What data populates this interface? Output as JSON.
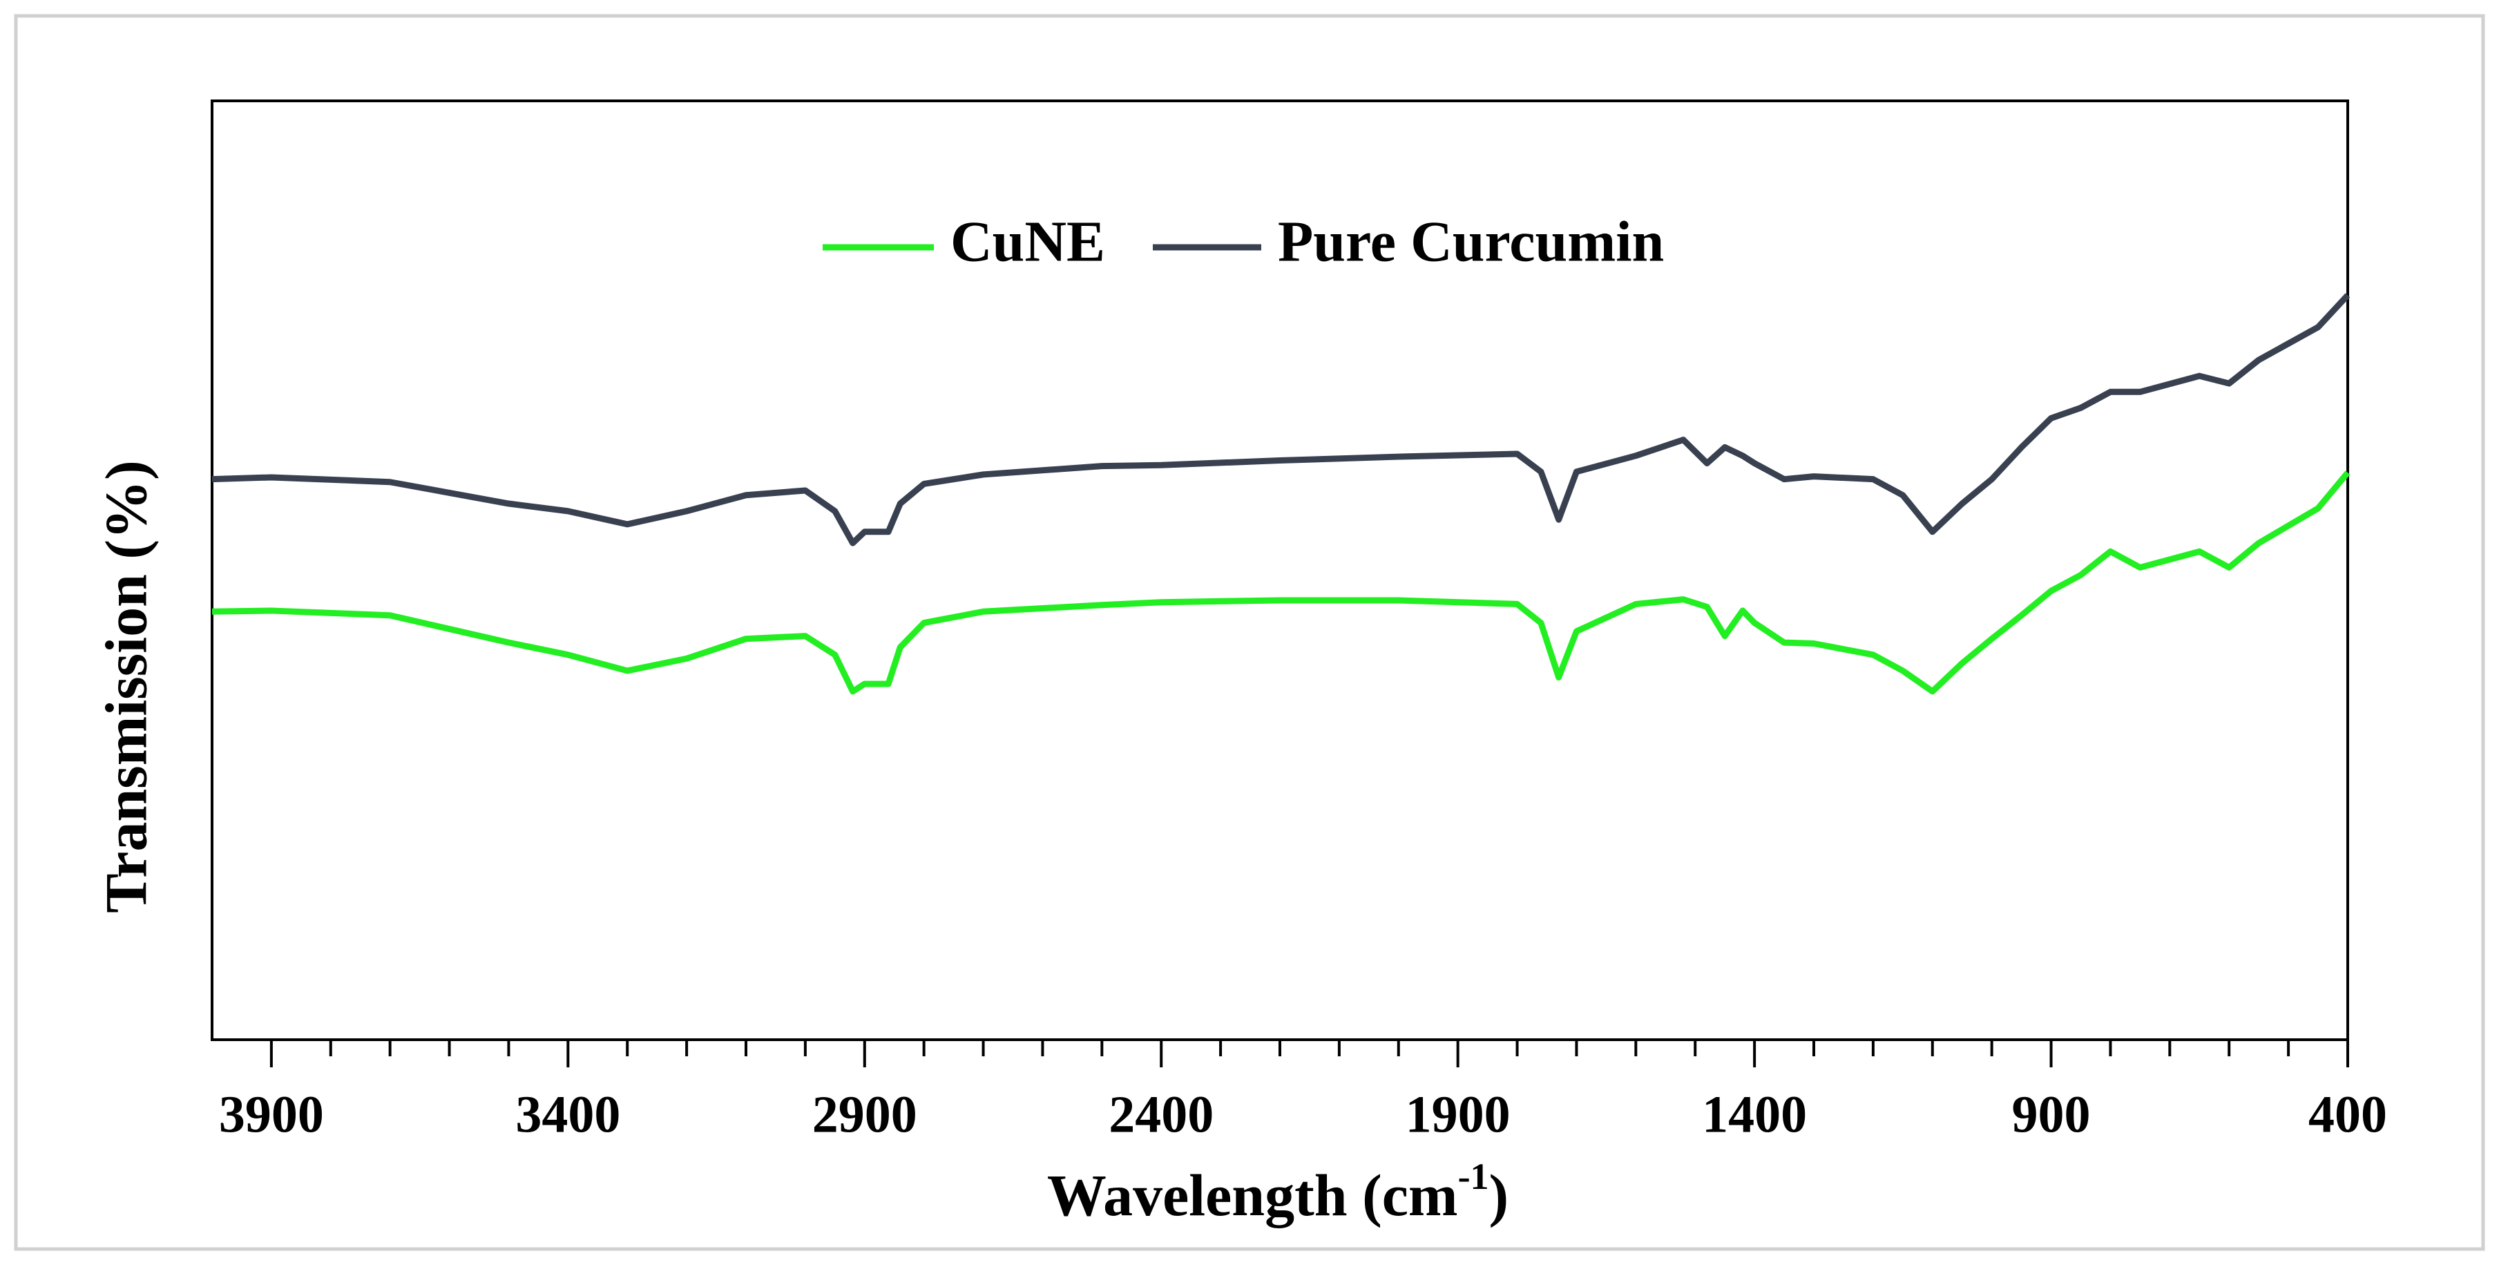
{
  "chart_data": {
    "type": "line",
    "x_label": {
      "text": "Wavelength (cm",
      "superscript": "-1",
      "suffix": ")"
    },
    "y_label": "Transmission (%)",
    "x": [
      4000,
      3900,
      3700,
      3500,
      3400,
      3300,
      3200,
      3100,
      3000,
      2950,
      2920,
      2900,
      2860,
      2840,
      2800,
      2700,
      2500,
      2400,
      2200,
      2000,
      1800,
      1760,
      1730,
      1700,
      1600,
      1520,
      1480,
      1450,
      1420,
      1400,
      1350,
      1300,
      1200,
      1150,
      1100,
      1050,
      1000,
      950,
      900,
      850,
      800,
      750,
      650,
      600,
      550,
      450,
      400
    ],
    "series": [
      {
        "name": "CuNE",
        "color": "#22ee22",
        "values": [
          45.6,
          45.7,
          45.2,
          42.3,
          41.0,
          39.3,
          40.6,
          42.7,
          43.0,
          41.0,
          37.1,
          37.9,
          37.9,
          41.8,
          44.4,
          45.6,
          46.3,
          46.6,
          46.8,
          46.8,
          46.4,
          44.4,
          38.6,
          43.5,
          46.4,
          46.9,
          46.1,
          43.0,
          45.7,
          44.4,
          42.3,
          42.2,
          41.0,
          39.3,
          37.1,
          40.1,
          42.7,
          45.2,
          47.8,
          49.5,
          52.0,
          50.3,
          52.0,
          50.3,
          52.9,
          56.6,
          60.4
        ]
      },
      {
        "name": "Pure Curcumin",
        "color": "#394150",
        "values": [
          59.7,
          59.9,
          59.4,
          57.1,
          56.3,
          54.9,
          56.3,
          58.0,
          58.5,
          56.3,
          52.9,
          54.1,
          54.1,
          57.1,
          59.2,
          60.2,
          61.1,
          61.2,
          61.7,
          62.1,
          62.4,
          60.5,
          55.4,
          60.5,
          62.2,
          63.9,
          61.4,
          63.1,
          62.2,
          61.4,
          59.7,
          60.0,
          59.7,
          58.0,
          54.1,
          57.1,
          59.7,
          63.1,
          66.2,
          67.3,
          69.0,
          69.0,
          70.7,
          69.9,
          72.4,
          75.9,
          79.3
        ]
      }
    ],
    "xlim": [
      4000,
      400
    ],
    "xticks": [
      3900,
      3400,
      2900,
      2400,
      1900,
      1400,
      900,
      400
    ],
    "xminorticks": [
      3800,
      3700,
      3600,
      3500,
      3300,
      3200,
      3100,
      3000,
      2800,
      2700,
      2600,
      2500,
      2300,
      2200,
      2100,
      2000,
      1800,
      1700,
      1600,
      1500,
      1300,
      1200,
      1100,
      1000,
      800,
      700,
      600,
      500
    ],
    "ylim": [
      0,
      100
    ],
    "legend": "top"
  }
}
